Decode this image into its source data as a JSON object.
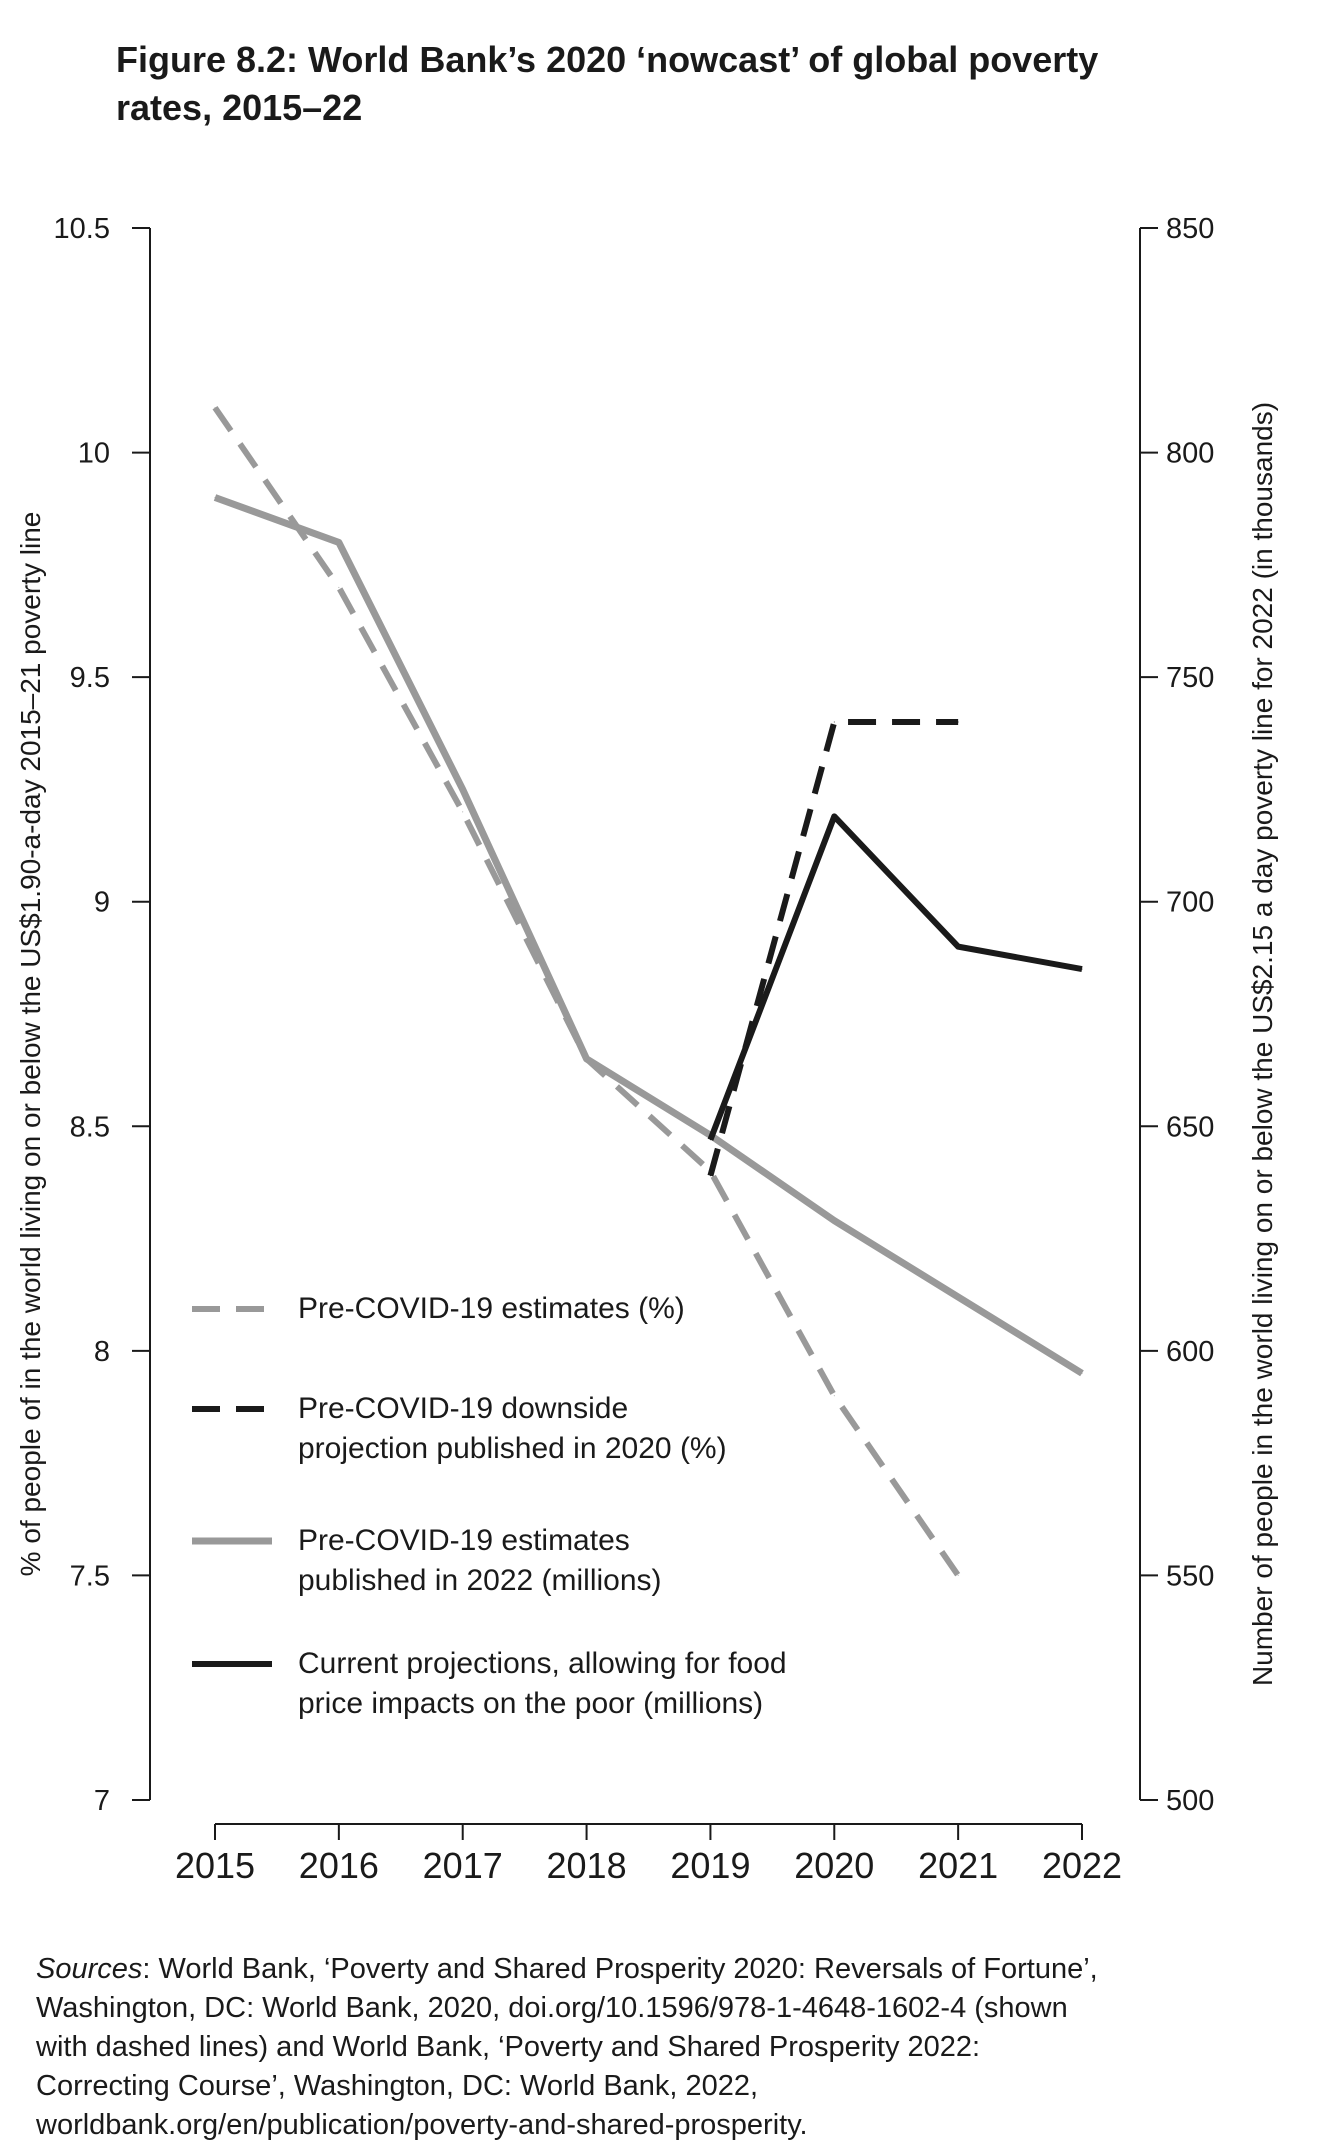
{
  "title_lines": [
    "Figure 8.2: World Bank’s 2020 ‘nowcast’ of global poverty",
    "rates, 2015–22"
  ],
  "chart_data": {
    "type": "line",
    "title": "Figure 8.2: World Bank’s 2020 ‘nowcast’ of global poverty rates, 2015–22",
    "x": [
      2015,
      2016,
      2017,
      2018,
      2019,
      2020,
      2021,
      2022
    ],
    "x_tick_labels": [
      "2015",
      "2016",
      "2017",
      "2018",
      "2019",
      "2020",
      "2021",
      "2022"
    ],
    "ylabel_left": "% of people of in the world living on or below the US$1.90-a-day 2015–21 poverty line",
    "ylabel_right": "Number of people in the world living on or below the US$2.15 a day poverty line for 2022 (in thousands)",
    "ylim_left": [
      7,
      10.5
    ],
    "ylim_right": [
      500,
      850
    ],
    "left_ticks": [
      "7",
      "7.5",
      "8",
      "8.5",
      "9",
      "9.5",
      "10",
      "10.5"
    ],
    "right_ticks": [
      "500",
      "550",
      "600",
      "650",
      "700",
      "750",
      "800",
      "850"
    ],
    "series": [
      {
        "name": "Pre-COVID-19 estimates (%)",
        "axis": "left",
        "style": "dashed",
        "color": "#999999",
        "x": [
          2015,
          2016,
          2017,
          2018,
          2019,
          2020,
          2021
        ],
        "values": [
          10.1,
          9.7,
          9.2,
          8.65,
          8.4,
          7.9,
          7.5
        ]
      },
      {
        "name": "Pre-COVID-19 downside projection published in 2020 (%)",
        "axis": "left",
        "style": "dashed",
        "color": "#1a1a1a",
        "x": [
          2019,
          2020,
          2021
        ],
        "values": [
          8.39,
          9.4,
          9.4
        ]
      },
      {
        "name": "Pre-COVID-19 estimates published in 2022 (millions)",
        "axis": "right",
        "style": "solid",
        "color": "#999999",
        "x": [
          2015,
          2016,
          2017,
          2018,
          2019,
          2020,
          2021,
          2022
        ],
        "values": [
          790,
          780,
          725,
          665,
          648,
          629,
          612,
          595
        ]
      },
      {
        "name": "Current projections, allowing for food price impacts on the poor (millions)",
        "axis": "right",
        "style": "solid",
        "color": "#1a1a1a",
        "x": [
          2019,
          2020,
          2021,
          2022
        ],
        "values": [
          647,
          719,
          690,
          685
        ]
      }
    ],
    "legend": [
      {
        "lines": [
          "Pre-COVID-19 estimates (%)"
        ]
      },
      {
        "lines": [
          "Pre-COVID-19 downside",
          "projection published in 2020 (%)"
        ]
      },
      {
        "lines": [
          "Pre-COVID-19 estimates",
          "published in 2022 (millions)"
        ]
      },
      {
        "lines": [
          "Current projections, allowing for food",
          "price impacts on the poor (millions)"
        ]
      }
    ],
    "legend_placement": "bottom-left"
  },
  "sources": {
    "label": "Sources",
    "line1_rest": ": World Bank, ‘Poverty and Shared Prosperity 2020: Reversals of Fortune’,",
    "lines": [
      "Washington, DC: World Bank, 2020, doi.org/10.1596/978-1-4648-1602-4 (shown",
      "with dashed lines) and World Bank, ‘Poverty and Shared Prosperity 2022:",
      "Correcting Course’, Washington, DC: World Bank, 2022,",
      "worldbank.org/en/publication/poverty-and-shared-prosperity."
    ]
  }
}
